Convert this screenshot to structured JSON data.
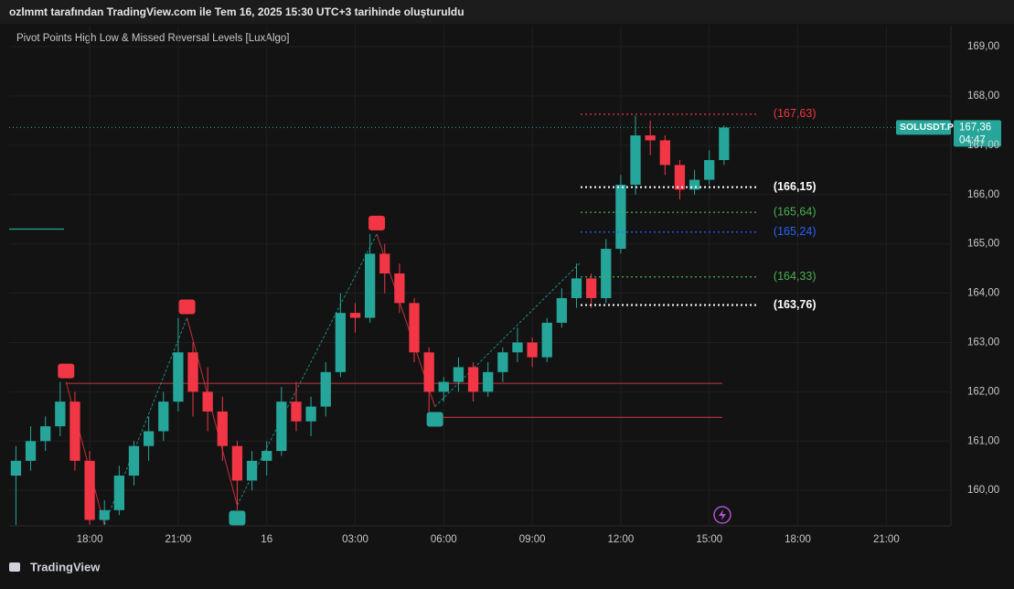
{
  "header": {
    "title": "ozlmmt tarafından TradingView.com ile Tem 16, 2025 15:30 UTC+3 tarihinde oluşturuldu"
  },
  "footer": {
    "brand": "TradingView"
  },
  "chart_data": {
    "type": "candlestick",
    "title": "Pivot Points High Low & Missed Reversal Levels [LuxAlgo]",
    "up_color": "#26a69a",
    "down_color": "#f23645",
    "xlim": [
      15.27,
      47.19
    ],
    "ylim": [
      159.28,
      169.39
    ],
    "xticks": [
      {
        "value": 18,
        "label": "18:00"
      },
      {
        "value": 21,
        "label": "21:00"
      },
      {
        "value": 24,
        "label": "16"
      },
      {
        "value": 27,
        "label": "03:00"
      },
      {
        "value": 30,
        "label": "06:00"
      },
      {
        "value": 33,
        "label": "09:00"
      },
      {
        "value": 36,
        "label": "12:00"
      },
      {
        "value": 39,
        "label": "15:00"
      },
      {
        "value": 42,
        "label": "18:00"
      },
      {
        "value": 45,
        "label": "21:00"
      }
    ],
    "yticks": [
      {
        "value": 160,
        "label": "160,00"
      },
      {
        "value": 161,
        "label": "161,00"
      },
      {
        "value": 162,
        "label": "162,00"
      },
      {
        "value": 163,
        "label": "163,00"
      },
      {
        "value": 164,
        "label": "164,00"
      },
      {
        "value": 165,
        "label": "165,00"
      },
      {
        "value": 166,
        "label": "166,00"
      },
      {
        "value": 167,
        "label": "167,00"
      },
      {
        "value": 168,
        "label": "168,00"
      },
      {
        "value": 169,
        "label": "169,00"
      }
    ],
    "grid": true,
    "x": [
      15.5,
      16,
      16.5,
      17,
      17.5,
      18,
      18.5,
      19,
      19.5,
      20,
      20.5,
      21,
      21.5,
      22,
      22.5,
      23,
      23.5,
      24,
      24.5,
      25,
      25.5,
      26,
      26.5,
      27,
      27.5,
      28,
      28.5,
      29,
      29.5,
      30,
      30.5,
      31,
      31.5,
      32,
      32.5,
      33,
      33.5,
      34,
      34.5,
      35,
      35.5,
      36,
      36.5,
      37,
      37.5,
      38,
      38.5,
      39,
      39.5
    ],
    "open": [
      160.3,
      160.6,
      161.0,
      161.3,
      161.8,
      160.6,
      159.4,
      159.6,
      160.3,
      160.9,
      161.2,
      161.8,
      162.8,
      162.0,
      161.6,
      160.9,
      160.2,
      160.6,
      160.8,
      161.8,
      161.4,
      161.7,
      162.4,
      163.6,
      163.5,
      164.8,
      164.4,
      163.8,
      162.8,
      162.0,
      162.2,
      162.5,
      162.0,
      162.4,
      162.8,
      163.0,
      162.7,
      163.4,
      163.9,
      164.3,
      163.9,
      164.9,
      166.2,
      167.2,
      167.1,
      166.6,
      166.1,
      166.3,
      166.7
    ],
    "high": [
      160.9,
      161.3,
      161.5,
      162.2,
      162.0,
      160.8,
      159.8,
      160.5,
      161.0,
      161.5,
      162.0,
      163.5,
      163.0,
      162.5,
      161.9,
      161.0,
      160.8,
      161.0,
      162.1,
      162.2,
      161.9,
      162.6,
      164.0,
      163.8,
      165.2,
      165.0,
      164.6,
      163.9,
      162.9,
      162.3,
      162.7,
      162.6,
      162.6,
      162.9,
      163.3,
      163.1,
      163.5,
      164.1,
      164.6,
      164.4,
      165.1,
      166.4,
      167.6,
      167.5,
      167.2,
      166.7,
      166.5,
      166.9,
      167.4
    ],
    "low": [
      159.3,
      160.4,
      160.8,
      161.1,
      160.4,
      159.3,
      159.3,
      159.5,
      160.1,
      160.6,
      161.0,
      161.6,
      161.5,
      161.2,
      160.6,
      159.6,
      160.0,
      160.3,
      160.7,
      161.2,
      161.1,
      161.5,
      162.3,
      163.2,
      163.4,
      164.0,
      163.6,
      162.6,
      161.6,
      161.8,
      162.0,
      161.8,
      161.9,
      162.2,
      162.6,
      162.5,
      162.6,
      163.3,
      163.7,
      163.7,
      163.8,
      164.8,
      166.0,
      166.8,
      166.4,
      165.9,
      166.0,
      166.2,
      166.6
    ],
    "close": [
      160.6,
      161.0,
      161.3,
      161.8,
      160.6,
      159.4,
      159.6,
      160.3,
      160.9,
      161.2,
      161.8,
      162.8,
      162.0,
      161.6,
      160.9,
      160.2,
      160.6,
      160.8,
      161.8,
      161.4,
      161.7,
      162.4,
      163.6,
      163.5,
      164.8,
      164.4,
      163.8,
      162.8,
      162.0,
      162.2,
      162.5,
      162.0,
      162.4,
      162.8,
      163.0,
      162.7,
      163.4,
      163.9,
      164.3,
      163.9,
      164.9,
      166.2,
      167.2,
      167.1,
      166.6,
      166.1,
      166.3,
      166.7,
      167.36
    ],
    "levels": [
      {
        "value": 167.63,
        "label": "(167,63)",
        "color": "#f23645",
        "bold": false
      },
      {
        "value": 166.15,
        "label": "(166,15)",
        "color": "#ffffff",
        "bold": true
      },
      {
        "value": 165.64,
        "label": "(165,64)",
        "color": "#4caf50",
        "bold": false
      },
      {
        "value": 165.24,
        "label": "(165,24)",
        "color": "#2962ff",
        "bold": false
      },
      {
        "value": 164.33,
        "label": "(164,33)",
        "color": "#4caf50",
        "bold": false
      },
      {
        "value": 163.76,
        "label": "(163,76)",
        "color": "#ffffff",
        "bold": true
      }
    ],
    "level_x": [
      34.64,
      40.68
    ],
    "lines": [
      {
        "y": 162.17,
        "x": [
          17.2,
          39.44
        ],
        "color": "#b2323b"
      },
      {
        "y": 161.48,
        "x": [
          29.7,
          39.44
        ],
        "color": "#b2323b"
      },
      {
        "y": 165.3,
        "x": [
          15.27,
          17.13
        ],
        "color": "#26a69a"
      }
    ],
    "zigzag": {
      "x": [
        17.2,
        18.5,
        21.3,
        23.0,
        27.73,
        29.7,
        34.6
      ],
      "y": [
        162.2,
        159.3,
        163.5,
        159.7,
        165.2,
        161.7,
        164.6
      ]
    },
    "price_tag": {
      "symbol": "SOLUSDT.P",
      "value": {
        "value": 167.36,
        "label": "167,36"
      },
      "countdown": "04:47"
    }
  }
}
